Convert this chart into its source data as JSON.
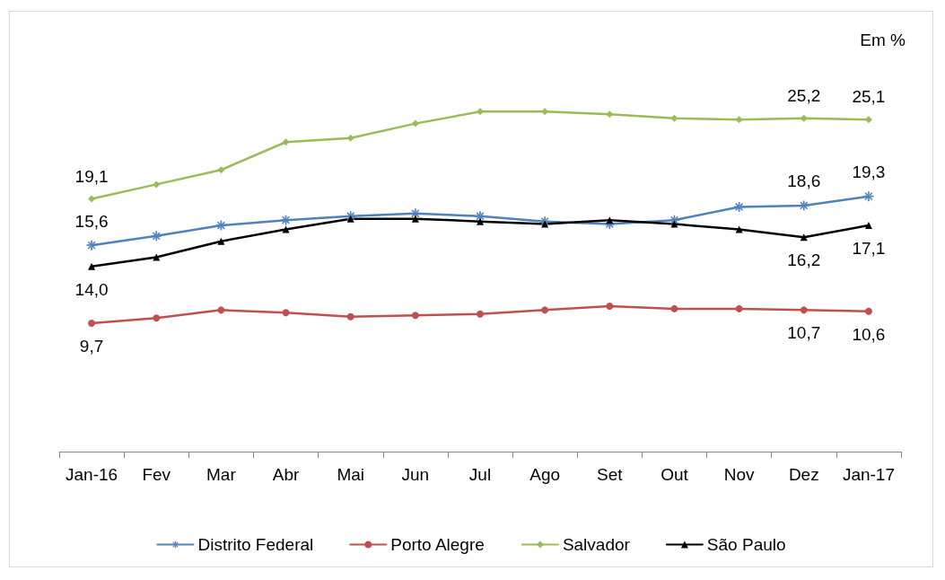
{
  "chart_data": {
    "type": "line",
    "categories": [
      "Jan-16",
      "Fev",
      "Mar",
      "Abr",
      "Mai",
      "Jun",
      "Jul",
      "Ago",
      "Set",
      "Out",
      "Nov",
      "Dez",
      "Jan-17"
    ],
    "annotations": [
      "Em %"
    ],
    "legend": "bottom",
    "grid": false,
    "series": [
      {
        "name": "Distrito Federal",
        "color": "#4f81bd",
        "marker": "cross",
        "values": [
          15.6,
          16.3,
          17.1,
          17.5,
          17.8,
          18.0,
          17.8,
          17.4,
          17.2,
          17.5,
          18.5,
          18.6,
          19.3
        ],
        "value_labels": [
          "15,6",
          null,
          null,
          null,
          null,
          null,
          null,
          null,
          null,
          null,
          null,
          "18,6",
          "19,3"
        ]
      },
      {
        "name": "Porto Alegre",
        "color": "#c0504d",
        "marker": "circle",
        "values": [
          9.7,
          10.1,
          10.7,
          10.5,
          10.2,
          10.3,
          10.4,
          10.7,
          11.0,
          10.8,
          10.8,
          10.7,
          10.6
        ],
        "value_labels": [
          "9,7",
          null,
          null,
          null,
          null,
          null,
          null,
          null,
          null,
          null,
          null,
          "10,7",
          "10,6"
        ]
      },
      {
        "name": "Salvador",
        "color": "#9bbb59",
        "marker": "diamond",
        "values": [
          19.1,
          20.2,
          21.3,
          23.4,
          23.7,
          24.8,
          25.7,
          25.7,
          25.5,
          25.2,
          25.1,
          25.2,
          25.1
        ],
        "value_labels": [
          "19,1",
          null,
          null,
          null,
          null,
          null,
          null,
          null,
          null,
          null,
          null,
          "25,2",
          "25,1"
        ]
      },
      {
        "name": "São Paulo",
        "color": "#000000",
        "marker": "triangle",
        "values": [
          14.0,
          14.7,
          15.9,
          16.8,
          17.6,
          17.6,
          17.4,
          17.2,
          17.5,
          17.2,
          16.8,
          16.2,
          17.1
        ],
        "value_labels": [
          "14,0",
          null,
          null,
          null,
          null,
          null,
          null,
          null,
          null,
          null,
          null,
          "16,2",
          "17,1"
        ]
      }
    ]
  }
}
